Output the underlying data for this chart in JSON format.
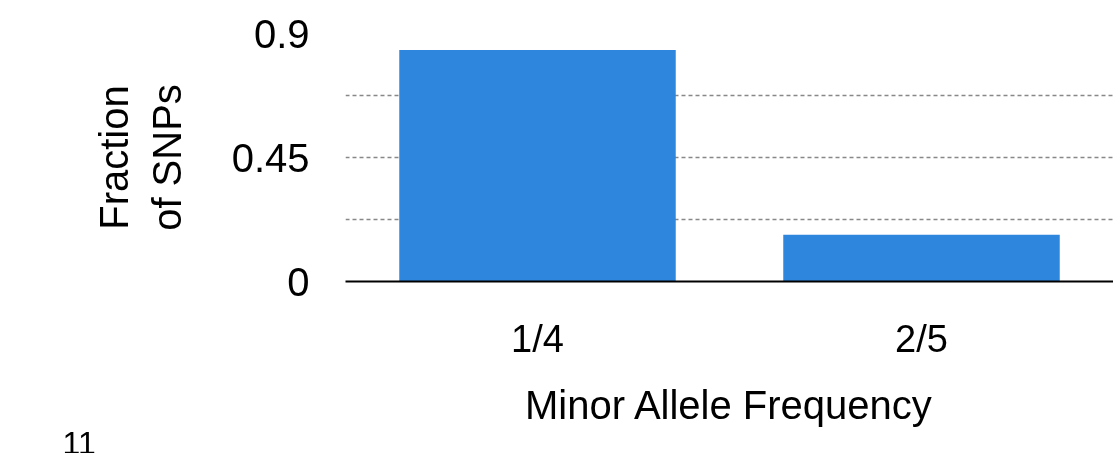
{
  "chart_data": {
    "type": "bar",
    "xlabel": "Minor Allele Frequency",
    "ylabel": "Fraction of SNPs",
    "categories": [
      "1/4",
      "2/5"
    ],
    "values": [
      0.84,
      0.17
    ],
    "color": "#2f86dd",
    "ylim": [
      0,
      0.9
    ],
    "yticks": [
      0,
      {
        "value": 0.225,
        "label": null
      },
      0.45,
      {
        "value": 0.675,
        "label": null
      },
      0.9
    ],
    "grid": "y",
    "annotations": [
      "11"
    ]
  }
}
